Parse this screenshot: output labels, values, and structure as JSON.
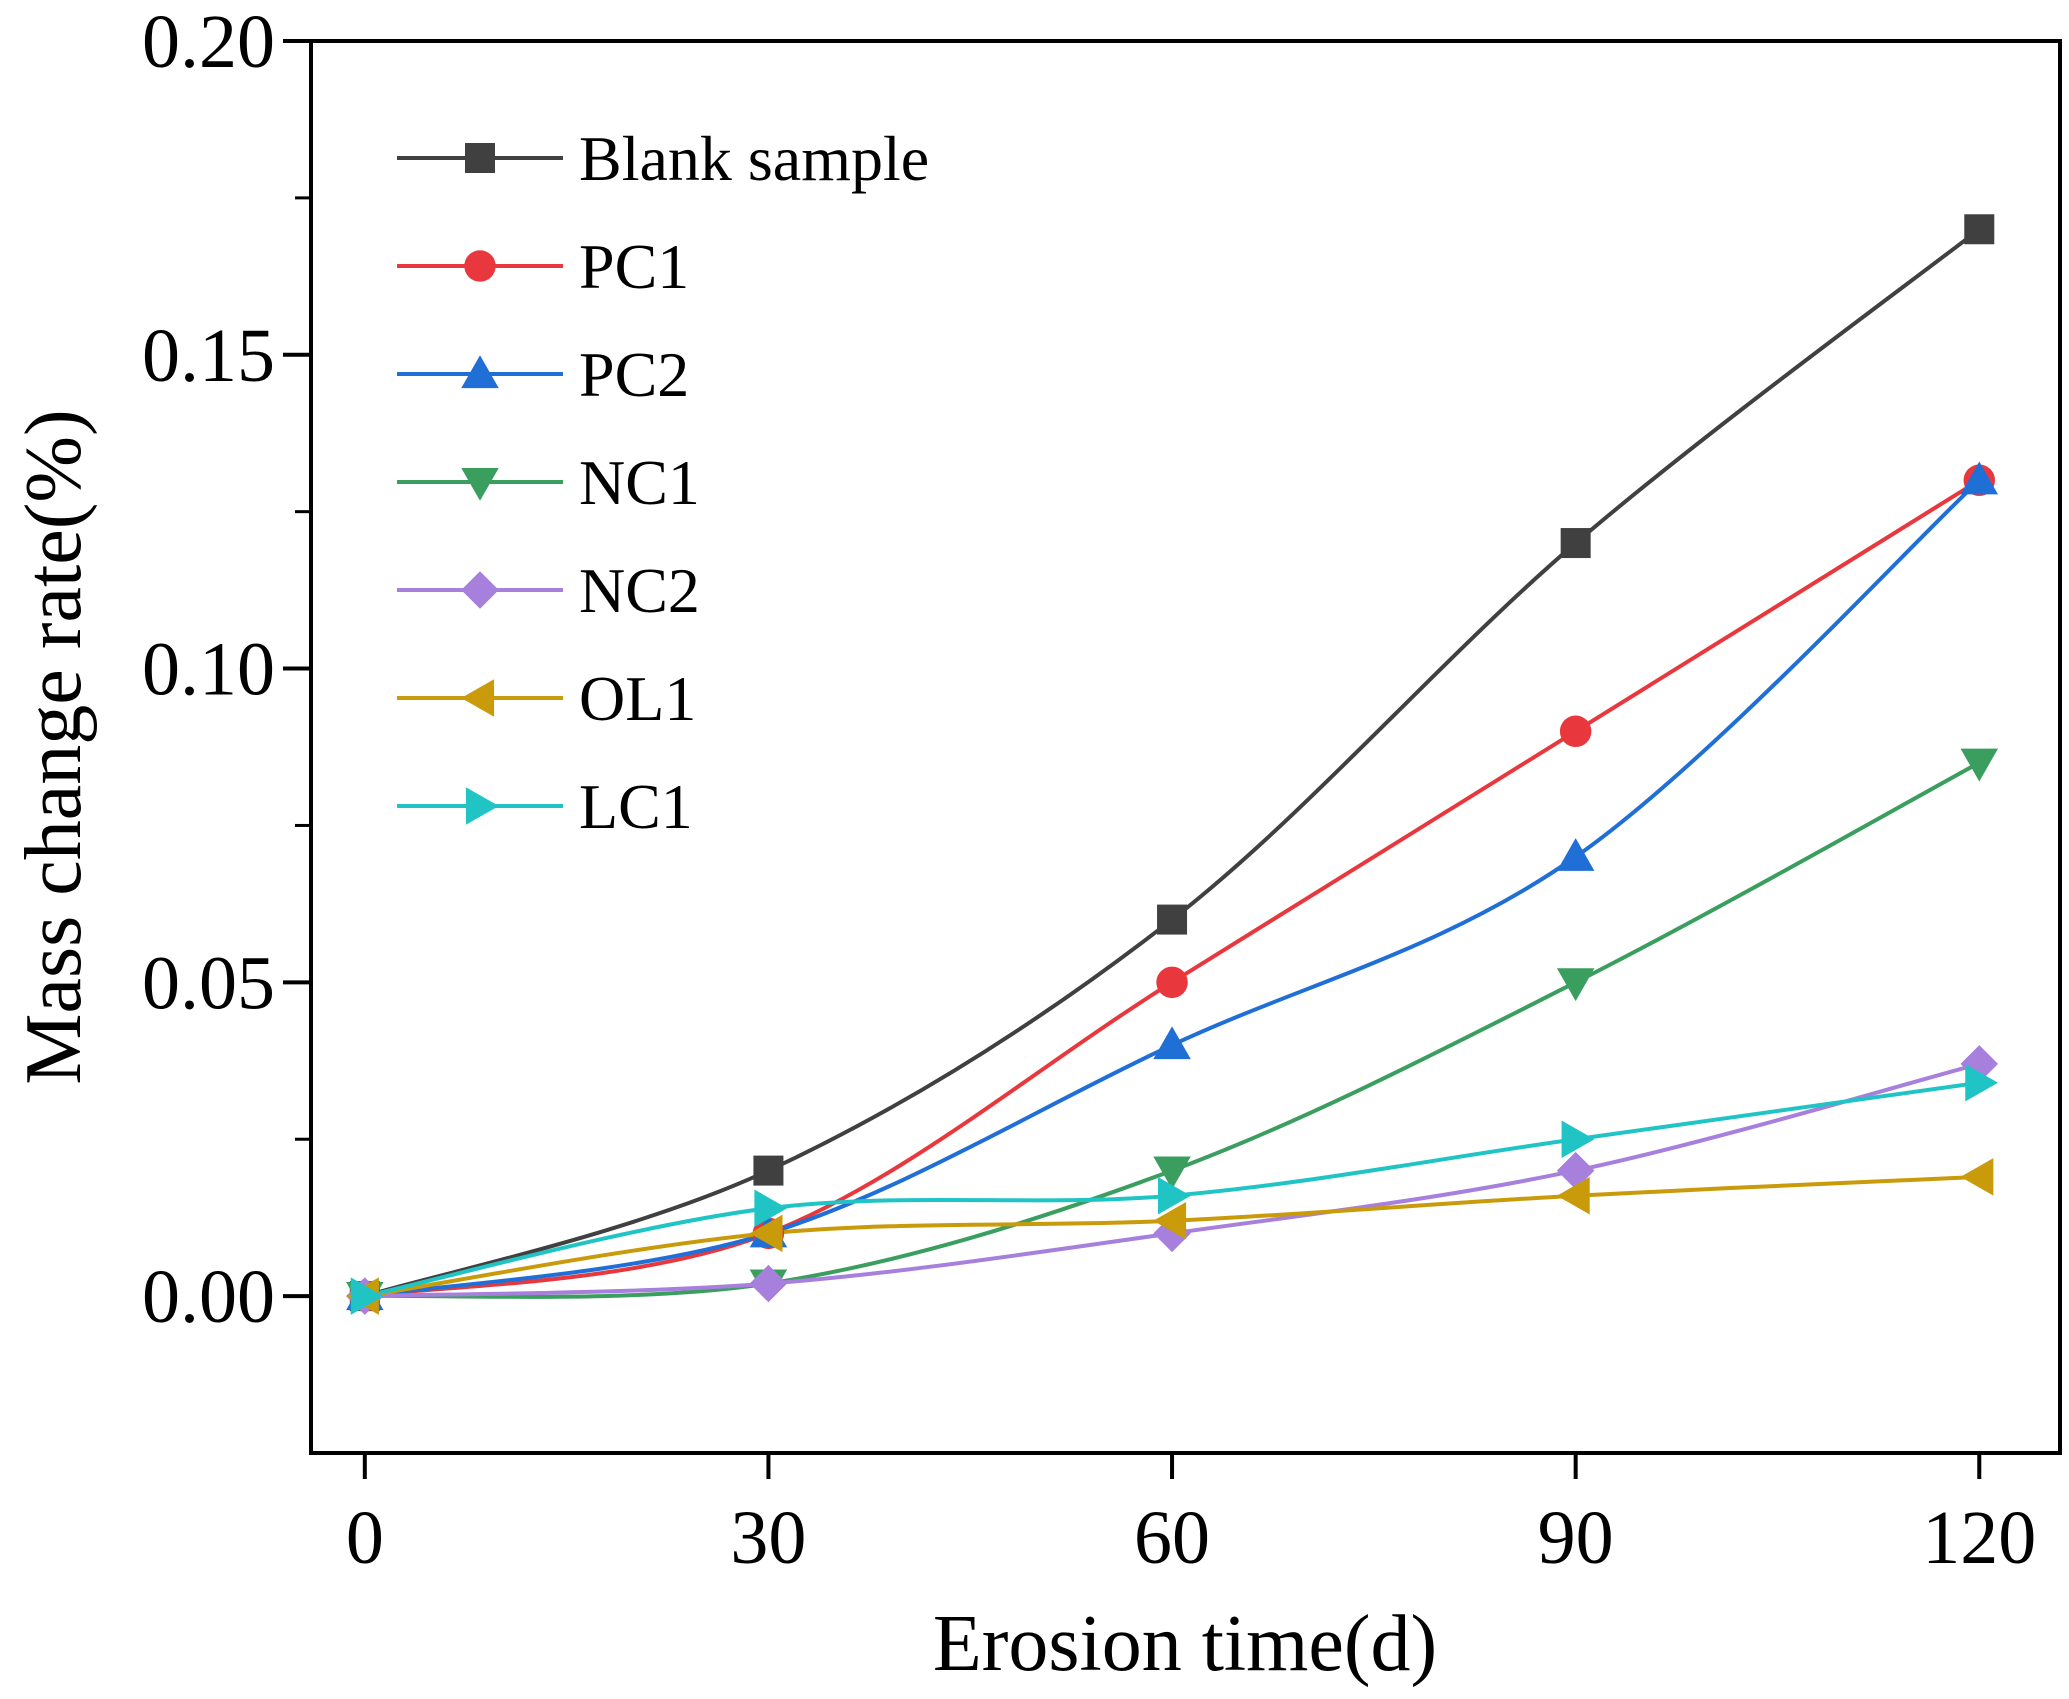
{
  "chart_data": {
    "type": "line",
    "title": "",
    "xlabel": "Erosion time(d)",
    "ylabel": "Mass change rate(%)",
    "xlim": [
      -4,
      126
    ],
    "ylim": [
      -0.025,
      0.2
    ],
    "x_ticks": [
      0,
      30,
      60,
      90,
      120
    ],
    "x_tick_labels": [
      "0",
      "30",
      "60",
      "90",
      "120"
    ],
    "y_ticks": [
      0.0,
      0.05,
      0.1,
      0.15,
      0.2
    ],
    "y_tick_labels": [
      "0.00",
      "0.05",
      "0.10",
      "0.15",
      "0.20"
    ],
    "grid": false,
    "legend_position": "top-left",
    "x": [
      0,
      30,
      60,
      90,
      120
    ],
    "series": [
      {
        "name": "Blank sample",
        "values": [
          0.0,
          0.02,
          0.06,
          0.12,
          0.17
        ],
        "color": "#404040",
        "marker": "square"
      },
      {
        "name": "PC1",
        "values": [
          0.0,
          0.01,
          0.05,
          0.09,
          0.13
        ],
        "color": "#e8383d",
        "marker": "circle"
      },
      {
        "name": "PC2",
        "values": [
          0.0,
          0.01,
          0.04,
          0.07,
          0.13
        ],
        "color": "#1f6fd6",
        "marker": "triangle-up"
      },
      {
        "name": "NC1",
        "values": [
          0.0,
          0.002,
          0.02,
          0.05,
          0.085
        ],
        "color": "#3a9e5f",
        "marker": "triangle-down"
      },
      {
        "name": "NC2",
        "values": [
          0.0,
          0.002,
          0.01,
          0.02,
          0.037
        ],
        "color": "#a77fdc",
        "marker": "diamond"
      },
      {
        "name": "OL1",
        "values": [
          0.0,
          0.01,
          0.012,
          0.016,
          0.019
        ],
        "color": "#c99a0a",
        "marker": "triangle-left"
      },
      {
        "name": "LC1",
        "values": [
          0.0,
          0.014,
          0.016,
          0.025,
          0.034
        ],
        "color": "#21c4c4",
        "marker": "triangle-right"
      }
    ]
  }
}
